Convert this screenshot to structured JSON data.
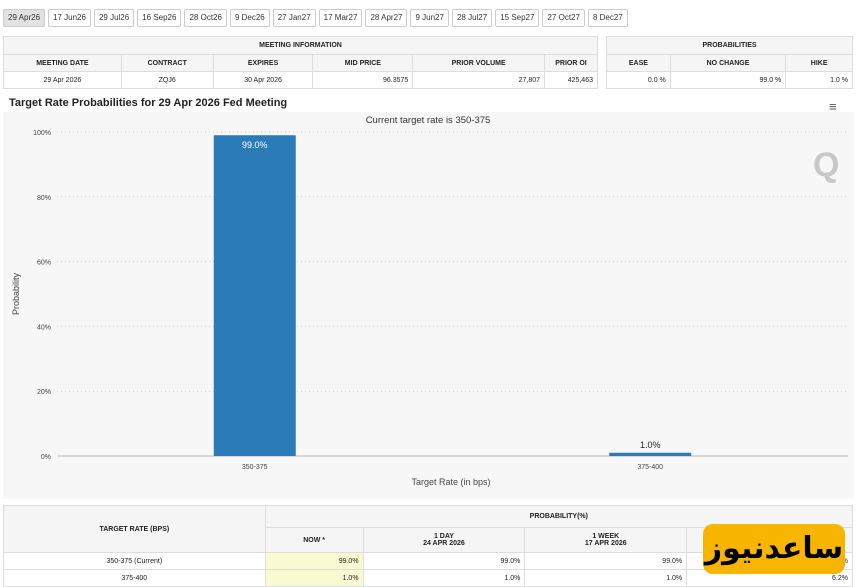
{
  "tabs": [
    "29 Apr26",
    "17 Jun26",
    "29 Jul26",
    "16 Sep26",
    "28 Oct26",
    "9 Dec26",
    "27 Jan27",
    "17 Mar27",
    "28 Apr27",
    "9 Jun27",
    "28 Jul27",
    "15 Sep27",
    "27 Oct27",
    "8 Dec27"
  ],
  "meeting": {
    "header": "MEETING INFORMATION",
    "cols": [
      "MEETING DATE",
      "CONTRACT",
      "EXPIRES",
      "MID PRICE",
      "PRIOR VOLUME",
      "PRIOR OI"
    ],
    "values": [
      "29 Apr 2026",
      "ZQJ6",
      "30 Apr 2026",
      "96.3575",
      "27,807",
      "425,463"
    ]
  },
  "probabilities": {
    "header": "PROBABILITIES",
    "cols": [
      "EASE",
      "NO CHANGE",
      "HIKE"
    ],
    "values": [
      "0.0 %",
      "99.0 %",
      "1.0 %"
    ]
  },
  "chart_title": "Target Rate Probabilities for 29 Apr 2026 Fed Meeting",
  "chart_data": {
    "type": "bar",
    "subtitle": "Current target rate is 350-375",
    "categories": [
      "350-375",
      "375-400"
    ],
    "values": [
      99.0,
      1.0
    ],
    "data_labels": [
      "99.0%",
      "1.0%"
    ],
    "xlabel": "Target Rate (in bps)",
    "ylabel": "Probability",
    "ylim": [
      0,
      100
    ],
    "yticks": [
      "0%",
      "20%",
      "40%",
      "60%",
      "80%",
      "100%"
    ],
    "bar_color": "#2b7bb9",
    "grid": true
  },
  "bottom": {
    "col_target": "TARGET RATE (BPS)",
    "col_prob": "PROBABILITY(%)",
    "sub": [
      {
        "l1": "NOW *",
        "l2": ""
      },
      {
        "l1": "1 DAY",
        "l2": "24 APR 2026"
      },
      {
        "l1": "1 WEEK",
        "l2": "17 APR 2026"
      },
      {
        "l1": "",
        "l2": ""
      }
    ],
    "rows": [
      {
        "rate": "350-375 (Current)",
        "v": [
          "99.0%",
          "99.0%",
          "99.0%",
          "%"
        ]
      },
      {
        "rate": "375-400",
        "v": [
          "1.0%",
          "1.0%",
          "1.0%",
          "6.2%"
        ]
      }
    ]
  },
  "watermark": "ساعدنیوز"
}
